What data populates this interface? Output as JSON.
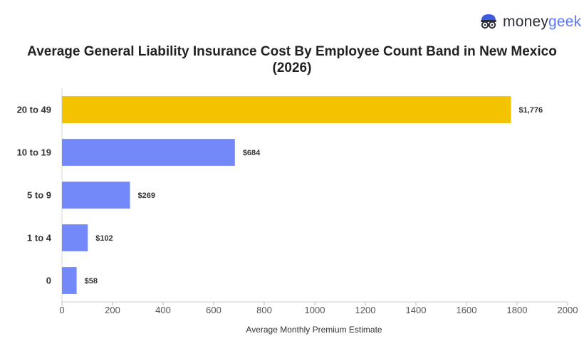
{
  "brand": {
    "name_part1": "money",
    "name_part2": "geek",
    "icon": "moneygeek-mascot-icon",
    "accent_color": "#5b79f7",
    "text_color": "#2b2f3a"
  },
  "chart_data": {
    "type": "bar",
    "orientation": "horizontal",
    "title": "Average General Liability Insurance Cost By Employee Count Band in New Mexico (2026)",
    "xlabel": "Average Monthly Premium Estimate",
    "ylabel": "",
    "xlim": [
      0,
      2000
    ],
    "xticks": [
      0,
      200,
      400,
      600,
      800,
      1000,
      1200,
      1400,
      1600,
      1800,
      2000
    ],
    "categories": [
      "20 to 49",
      "10 to 19",
      "5 to 9",
      "1 to 4",
      "0"
    ],
    "values": [
      1776,
      684,
      269,
      102,
      58
    ],
    "value_labels": [
      "$1,776",
      "$684",
      "$269",
      "$102",
      "$58"
    ],
    "colors": [
      "#f3c300",
      "#7389f9",
      "#7389f9",
      "#7389f9",
      "#7389f9"
    ],
    "grid": false,
    "legend": "none"
  }
}
